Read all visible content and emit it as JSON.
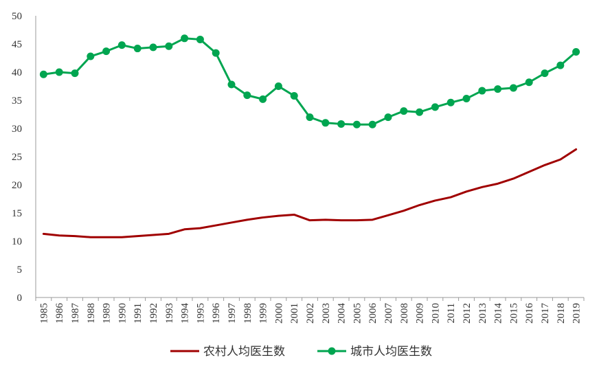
{
  "chart_data": {
    "type": "line",
    "title": "",
    "xlabel": "",
    "ylabel": "",
    "ylim": [
      0,
      50
    ],
    "yticks": [
      0,
      5,
      10,
      15,
      20,
      25,
      30,
      35,
      40,
      45,
      50
    ],
    "grid": false,
    "legend_position": "bottom",
    "categories": [
      "1985",
      "1986",
      "1987",
      "1988",
      "1989",
      "1990",
      "1991",
      "1992",
      "1993",
      "1994",
      "1995",
      "1996",
      "1997",
      "1998",
      "1999",
      "2000",
      "2001",
      "2002",
      "2003",
      "2004",
      "2005",
      "2006",
      "2007",
      "2008",
      "2009",
      "2010",
      "2011",
      "2012",
      "2013",
      "2014",
      "2015",
      "2016",
      "2017",
      "2018",
      "2019"
    ],
    "series": [
      {
        "name": "农村人均医生数",
        "color": "#a00000",
        "markers": false,
        "values": [
          11.3,
          11.0,
          10.9,
          10.7,
          10.7,
          10.7,
          10.9,
          11.1,
          11.3,
          12.1,
          12.3,
          12.8,
          13.3,
          13.8,
          14.2,
          14.5,
          14.7,
          13.7,
          13.8,
          13.7,
          13.7,
          13.8,
          14.6,
          15.4,
          16.4,
          17.2,
          17.8,
          18.8,
          19.6,
          20.2,
          21.1,
          22.3,
          23.5,
          24.5,
          26.3
        ]
      },
      {
        "name": "城市人均医生数",
        "color": "#00a550",
        "markers": true,
        "values": [
          39.6,
          40.0,
          39.8,
          42.8,
          43.7,
          44.8,
          44.2,
          44.4,
          44.6,
          46.0,
          45.8,
          43.4,
          37.8,
          35.9,
          35.2,
          37.5,
          35.8,
          32.0,
          31.0,
          30.8,
          30.7,
          30.7,
          32.0,
          33.1,
          32.9,
          33.8,
          34.6,
          35.3,
          36.7,
          37.0,
          37.2,
          38.2,
          39.8,
          41.2,
          43.6
        ]
      }
    ]
  }
}
